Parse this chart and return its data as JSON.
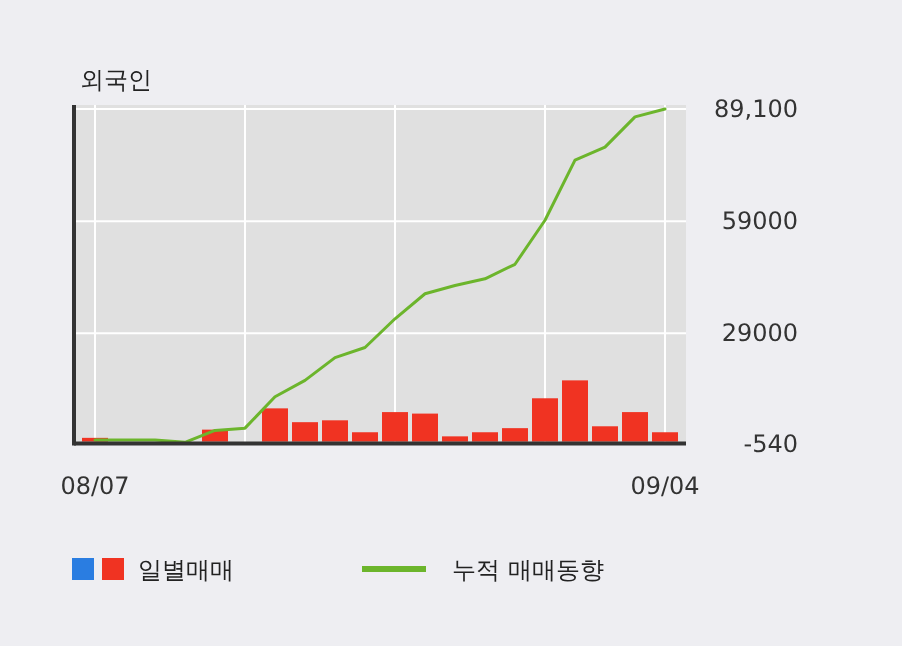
{
  "chart_data": {
    "type": "bar",
    "title": "외국인",
    "categories": [
      "08/07",
      null,
      null,
      null,
      null,
      null,
      null,
      null,
      null,
      null,
      null,
      null,
      null,
      null,
      null,
      null,
      null,
      null,
      null,
      "09/04"
    ],
    "series": [
      {
        "name": "일별매매",
        "color": "#f03322",
        "values": [
          1000,
          0,
          0,
          0,
          3200,
          0,
          8900,
          5200,
          5700,
          2500,
          7900,
          7500,
          1400,
          2500,
          3600,
          11600,
          16400,
          4100,
          7900,
          2500
        ]
      },
      {
        "name": "누적 매매동향",
        "type": "line",
        "color": "#6cb52c",
        "values": [
          400,
          400,
          400,
          -200,
          3000,
          3600,
          12000,
          16400,
          22500,
          25200,
          32900,
          39600,
          41800,
          43600,
          47500,
          59300,
          75400,
          78900,
          87000,
          89100
        ]
      }
    ],
    "ylim": [
      -540,
      89100
    ],
    "yticks": [
      -540,
      29000,
      59000,
      {
        "value": 89100,
        "label": "89,100"
      }
    ],
    "grid": true,
    "legend": "bottom"
  }
}
